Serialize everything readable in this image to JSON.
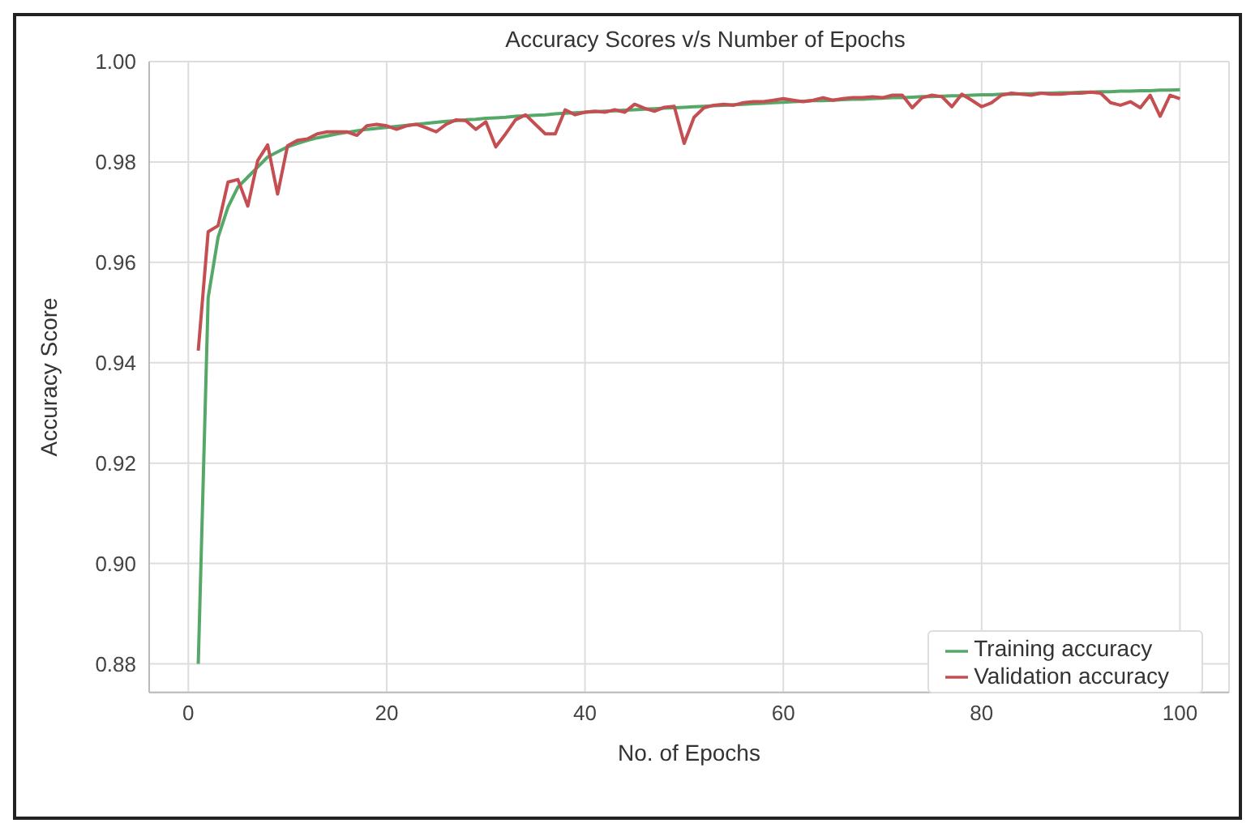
{
  "chart_data": {
    "type": "line",
    "title": "Accuracy Scores v/s Number of Epochs",
    "xlabel": "No. of Epochs",
    "ylabel": "Accuracy Score",
    "x": [
      1,
      2,
      3,
      4,
      5,
      6,
      7,
      8,
      9,
      10,
      11,
      12,
      13,
      14,
      15,
      16,
      17,
      18,
      19,
      20,
      21,
      22,
      23,
      24,
      25,
      26,
      27,
      28,
      29,
      30,
      31,
      32,
      33,
      34,
      35,
      36,
      37,
      38,
      39,
      40,
      41,
      42,
      43,
      44,
      45,
      46,
      47,
      48,
      49,
      50,
      51,
      52,
      53,
      54,
      55,
      56,
      57,
      58,
      59,
      60,
      61,
      62,
      63,
      64,
      65,
      66,
      67,
      68,
      69,
      70,
      71,
      72,
      73,
      74,
      75,
      76,
      77,
      78,
      79,
      80,
      81,
      82,
      83,
      84,
      85,
      86,
      87,
      88,
      89,
      90,
      91,
      92,
      93,
      94,
      95,
      96,
      97,
      98,
      99,
      100
    ],
    "series": [
      {
        "name": "Training accuracy",
        "color": "#55a868",
        "values": [
          0.88,
          0.953,
          0.965,
          0.971,
          0.975,
          0.977,
          0.979,
          0.981,
          0.982,
          0.983,
          0.9837,
          0.9843,
          0.9848,
          0.9852,
          0.9856,
          0.9859,
          0.9862,
          0.9865,
          0.9867,
          0.9869,
          0.9871,
          0.9873,
          0.9875,
          0.9877,
          0.9879,
          0.9881,
          0.9882,
          0.9884,
          0.9885,
          0.9887,
          0.9888,
          0.9889,
          0.9891,
          0.9892,
          0.9893,
          0.9894,
          0.9896,
          0.9897,
          0.9898,
          0.9899,
          0.99,
          0.9901,
          0.9902,
          0.9903,
          0.9904,
          0.9905,
          0.9906,
          0.9907,
          0.9908,
          0.9909,
          0.991,
          0.9911,
          0.9912,
          0.9913,
          0.9914,
          0.9915,
          0.9916,
          0.9917,
          0.9918,
          0.9919,
          0.992,
          0.9921,
          0.9922,
          0.9922,
          0.9923,
          0.9924,
          0.9925,
          0.9925,
          0.9926,
          0.9927,
          0.9928,
          0.9928,
          0.9929,
          0.993,
          0.993,
          0.9931,
          0.9932,
          0.9932,
          0.9933,
          0.9934,
          0.9934,
          0.9935,
          0.9935,
          0.9936,
          0.9936,
          0.9937,
          0.9937,
          0.9938,
          0.9938,
          0.9939,
          0.9939,
          0.994,
          0.994,
          0.9941,
          0.9941,
          0.9942,
          0.9942,
          0.9943,
          0.9943,
          0.9944
        ]
      },
      {
        "name": "Validation accuracy",
        "color": "#c44e52",
        "values": [
          0.9424,
          0.9661,
          0.9673,
          0.976,
          0.9765,
          0.9712,
          0.9803,
          0.9834,
          0.9736,
          0.9832,
          0.9843,
          0.9846,
          0.9856,
          0.986,
          0.986,
          0.986,
          0.9853,
          0.9872,
          0.9875,
          0.9872,
          0.9865,
          0.9872,
          0.9875,
          0.9868,
          0.986,
          0.9875,
          0.9884,
          0.9882,
          0.9865,
          0.988,
          0.983,
          0.9856,
          0.9884,
          0.9894,
          0.9875,
          0.9856,
          0.9856,
          0.9904,
          0.9894,
          0.9899,
          0.9901,
          0.9899,
          0.9904,
          0.9899,
          0.9915,
          0.9907,
          0.9901,
          0.9909,
          0.9911,
          0.9837,
          0.9889,
          0.9908,
          0.9913,
          0.9915,
          0.9913,
          0.9918,
          0.992,
          0.992,
          0.9923,
          0.9926,
          0.9923,
          0.992,
          0.9923,
          0.9928,
          0.9923,
          0.9926,
          0.9928,
          0.9928,
          0.993,
          0.9928,
          0.9933,
          0.9933,
          0.9908,
          0.9928,
          0.9933,
          0.993,
          0.991,
          0.9935,
          0.9923,
          0.991,
          0.9918,
          0.9933,
          0.9937,
          0.9935,
          0.9933,
          0.9937,
          0.9935,
          0.9935,
          0.9937,
          0.9937,
          0.9939,
          0.9937,
          0.9918,
          0.9913,
          0.992,
          0.9908,
          0.9933,
          0.9891,
          0.9933,
          0.9926
        ]
      }
    ],
    "xlim": [
      -3.95,
      104.95
    ],
    "xticks": [
      0,
      20,
      40,
      60,
      80,
      100
    ],
    "ylim": [
      0.8743,
      1.0
    ],
    "yticks": [
      0.88,
      {
        "value": 0.9,
        "label": "0.90"
      },
      0.92,
      0.94,
      0.96,
      0.98,
      {
        "value": 1.0,
        "label": "1.00"
      }
    ],
    "grid": true,
    "legend": "bottom right"
  }
}
